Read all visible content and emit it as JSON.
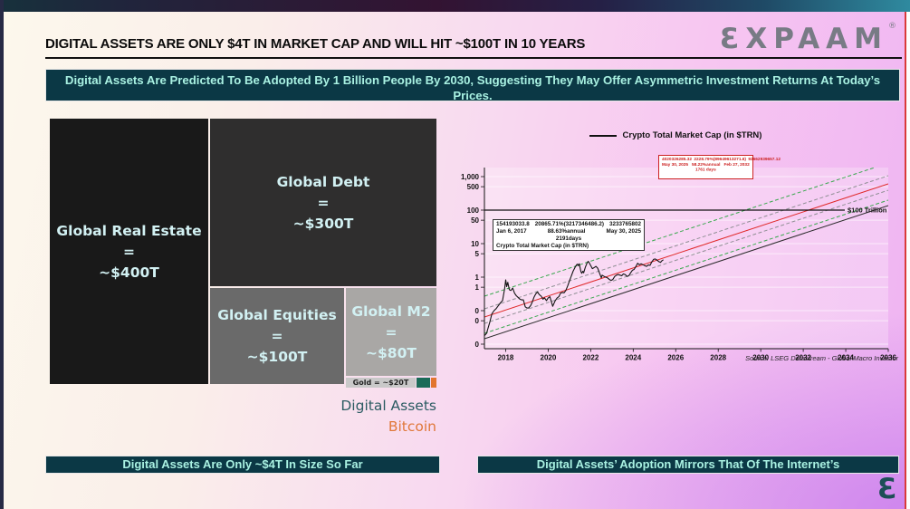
{
  "page": {
    "title": "DIGITAL ASSETS ARE ONLY $4T IN MARKET CAP AND WILL HIT ~$100T IN 10 YEARS",
    "logo_text": "ƐXPAAM",
    "logo_reg": "®",
    "logo_mark": "Ɛ",
    "top_banner": "Digital Assets Are Predicted To Be Adopted By 1 Billion People By 2030, Suggesting They May Offer Asymmetric Investment Returns At Today’s Prices.",
    "bottom_left_banner": "Digital Assets Are Only ~$4T In Size So Far",
    "bottom_right_banner": "Digital Assets’ Adoption Mirrors That Of The Internet’s"
  },
  "chart_data": [
    {
      "type": "treemap",
      "items": [
        {
          "label": "Global Real Estate",
          "eq": "=",
          "value_text": "~$400T",
          "value_trillions": 400,
          "color": "#191919"
        },
        {
          "label": "Global Debt",
          "eq": "=",
          "value_text": "~$300T",
          "value_trillions": 300,
          "color": "#2f2e2e"
        },
        {
          "label": "Global Equities",
          "eq": "=",
          "value_text": "~$100T",
          "value_trillions": 100,
          "color": "#6a6a6a"
        },
        {
          "label": "Global M2",
          "eq": "=",
          "value_text": "~$80T",
          "value_trillions": 80,
          "color": "#a9a7a5"
        },
        {
          "label": "Gold = ~$20T",
          "value_trillions": 20,
          "color": "#c9c9c9"
        },
        {
          "label": "Digital Assets",
          "value_trillions": 4,
          "color": "#1a6b58"
        },
        {
          "label": "Bitcoin",
          "color": "#e2752f"
        }
      ]
    },
    {
      "type": "line",
      "legend": "Crypto Total Market Cap (in $TRN)",
      "x_axis": {
        "range": [
          2017,
          2036
        ],
        "ticks": [
          2018,
          2020,
          2022,
          2024,
          2026,
          2028,
          2030,
          2032,
          2034,
          2036
        ]
      },
      "y_axis": {
        "scale": "log",
        "tick_values": [
          1000,
          500,
          100,
          50,
          10,
          5,
          1,
          0.5,
          0.1,
          0.05,
          0.01
        ],
        "tick_labels": [
          "1,000",
          "500",
          "100",
          "50",
          "10",
          "5",
          "1",
          "1",
          "0",
          "0",
          "0"
        ]
      },
      "reference_line": {
        "value": 100,
        "label": "$100 Trillion",
        "color": "#111111"
      },
      "channel_lines": [
        {
          "name": "upper-green",
          "color": "#3aa84e",
          "dashed": true,
          "points": [
            [
              2017,
              0.27
            ],
            [
              2036,
              2540
            ]
          ]
        },
        {
          "name": "upper-gray",
          "color": "#8f8f94",
          "dashed": true,
          "points": [
            [
              2017,
              0.113
            ],
            [
              2036,
              1064
            ]
          ]
        },
        {
          "name": "regression-red",
          "color": "#e02828",
          "dashed": false,
          "points": [
            [
              2017,
              0.0645
            ],
            [
              2036,
              608
            ]
          ]
        },
        {
          "name": "lower-gray",
          "color": "#8f8f94",
          "dashed": true,
          "points": [
            [
              2017,
              0.0416
            ],
            [
              2036,
              392
            ]
          ]
        },
        {
          "name": "lower-green",
          "color": "#3aa84e",
          "dashed": true,
          "points": [
            [
              2017,
              0.0211
            ],
            [
              2036,
              199
            ]
          ]
        },
        {
          "name": "baseline-black",
          "color": "#2a2a2a",
          "dashed": false,
          "points": [
            [
              2017,
              0.0145
            ],
            [
              2036,
              137
            ]
          ]
        }
      ],
      "series": [
        {
          "name": "Crypto Total Market Cap (in $TRN)",
          "color": "#141414",
          "points": [
            [
              2017.0,
              0.018
            ],
            [
              2017.1,
              0.021
            ],
            [
              2017.25,
              0.045
            ],
            [
              2017.35,
              0.08
            ],
            [
              2017.45,
              0.1
            ],
            [
              2017.55,
              0.115
            ],
            [
              2017.65,
              0.14
            ],
            [
              2017.75,
              0.17
            ],
            [
              2017.85,
              0.2
            ],
            [
              2017.95,
              0.45
            ],
            [
              2018.0,
              0.83
            ],
            [
              2018.05,
              0.52
            ],
            [
              2018.1,
              0.7
            ],
            [
              2018.17,
              0.42
            ],
            [
              2018.25,
              0.4
            ],
            [
              2018.33,
              0.47
            ],
            [
              2018.42,
              0.33
            ],
            [
              2018.5,
              0.28
            ],
            [
              2018.58,
              0.25
            ],
            [
              2018.67,
              0.22
            ],
            [
              2018.75,
              0.21
            ],
            [
              2018.83,
              0.21
            ],
            [
              2018.92,
              0.13
            ],
            [
              2019.0,
              0.12
            ],
            [
              2019.08,
              0.12
            ],
            [
              2019.17,
              0.14
            ],
            [
              2019.25,
              0.18
            ],
            [
              2019.33,
              0.25
            ],
            [
              2019.42,
              0.32
            ],
            [
              2019.5,
              0.36
            ],
            [
              2019.58,
              0.3
            ],
            [
              2019.67,
              0.27
            ],
            [
              2019.75,
              0.22
            ],
            [
              2019.83,
              0.24
            ],
            [
              2019.92,
              0.2
            ],
            [
              2020.0,
              0.24
            ],
            [
              2020.08,
              0.26
            ],
            [
              2020.21,
              0.135
            ],
            [
              2020.33,
              0.2
            ],
            [
              2020.42,
              0.24
            ],
            [
              2020.5,
              0.26
            ],
            [
              2020.58,
              0.33
            ],
            [
              2020.67,
              0.35
            ],
            [
              2020.75,
              0.34
            ],
            [
              2020.83,
              0.4
            ],
            [
              2020.92,
              0.55
            ],
            [
              2021.0,
              0.77
            ],
            [
              2021.08,
              1.05
            ],
            [
              2021.17,
              1.5
            ],
            [
              2021.25,
              1.9
            ],
            [
              2021.33,
              2.3
            ],
            [
              2021.38,
              2.45
            ],
            [
              2021.42,
              2.2
            ],
            [
              2021.46,
              2.5
            ],
            [
              2021.54,
              1.45
            ],
            [
              2021.58,
              1.3
            ],
            [
              2021.63,
              1.5
            ],
            [
              2021.67,
              1.35
            ],
            [
              2021.75,
              2.0
            ],
            [
              2021.83,
              2.65
            ],
            [
              2021.88,
              2.95
            ],
            [
              2021.92,
              2.75
            ],
            [
              2022.0,
              2.2
            ],
            [
              2022.08,
              1.8
            ],
            [
              2022.17,
              1.95
            ],
            [
              2022.25,
              2.1
            ],
            [
              2022.33,
              1.85
            ],
            [
              2022.42,
              1.3
            ],
            [
              2022.5,
              0.95
            ],
            [
              2022.54,
              1.15
            ],
            [
              2022.63,
              1.05
            ],
            [
              2022.71,
              1.0
            ],
            [
              2022.79,
              0.95
            ],
            [
              2022.88,
              0.85
            ],
            [
              2022.96,
              0.8
            ],
            [
              2023.04,
              0.85
            ],
            [
              2023.13,
              1.05
            ],
            [
              2023.21,
              1.15
            ],
            [
              2023.29,
              1.2
            ],
            [
              2023.38,
              1.15
            ],
            [
              2023.46,
              1.1
            ],
            [
              2023.54,
              1.25
            ],
            [
              2023.63,
              1.18
            ],
            [
              2023.71,
              1.05
            ],
            [
              2023.79,
              1.1
            ],
            [
              2023.88,
              1.35
            ],
            [
              2023.96,
              1.6
            ],
            [
              2024.04,
              1.7
            ],
            [
              2024.13,
              2.1
            ],
            [
              2024.21,
              2.6
            ],
            [
              2024.29,
              2.35
            ],
            [
              2024.38,
              2.5
            ],
            [
              2024.46,
              2.35
            ],
            [
              2024.54,
              2.2
            ],
            [
              2024.63,
              2.1
            ],
            [
              2024.71,
              2.3
            ],
            [
              2024.79,
              2.25
            ],
            [
              2024.88,
              2.9
            ],
            [
              2024.96,
              3.4
            ],
            [
              2025.04,
              3.5
            ],
            [
              2025.13,
              3.2
            ],
            [
              2025.21,
              2.9
            ],
            [
              2025.29,
              2.75
            ],
            [
              2025.33,
              3.0
            ],
            [
              2025.42,
              3.3
            ]
          ]
        }
      ],
      "annotations": [
        {
          "id": "fit-box",
          "border": "#333333",
          "text_color": "#111111",
          "rows": [
            [
              "154193033.8",
              "20865.71%(3217346486.2)",
              "3233765802"
            ],
            [
              "Jan 6, 2017",
              "88.63%annual",
              "May 30, 2025"
            ],
            [
              "",
              "2191days",
              ""
            ],
            [
              "Crypto Total Market Cap (in $TRN)",
              "",
              ""
            ]
          ]
        },
        {
          "id": "projection-box",
          "border": "#cc2222",
          "text_color": "#cc2222",
          "rows": [
            [
              "4020326285.32",
              "2228.79%(89649613271.6)",
              "93662939657.12"
            ],
            [
              "May 30, 2025",
              "58.22%annual",
              "Feb 27, 2032"
            ],
            [
              "",
              "1761 days",
              ""
            ]
          ]
        }
      ],
      "source": "Source: LSEG Datastream - Global Macro Investor"
    }
  ]
}
